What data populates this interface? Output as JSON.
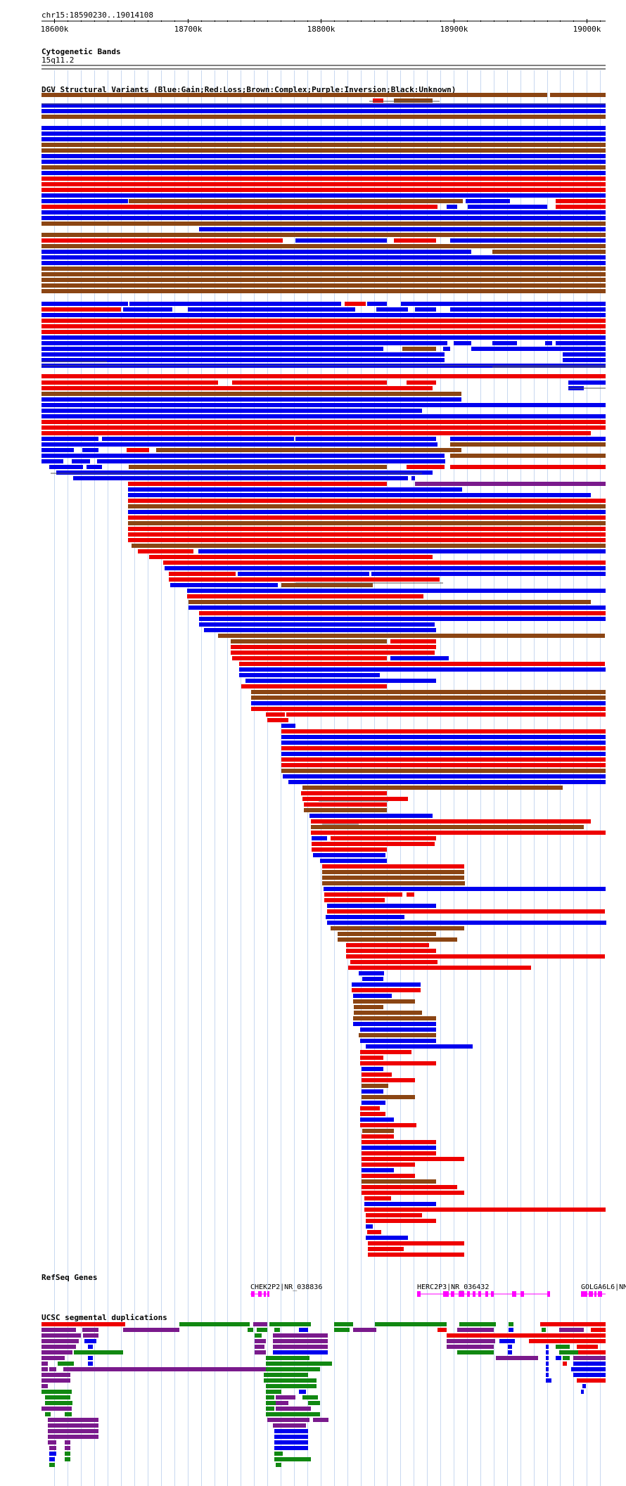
{
  "ruler": {
    "locus": "chr15:18590230..19014108",
    "ticks": [
      {
        "pos": 18600000,
        "label": "18600k"
      },
      {
        "pos": 18700000,
        "label": "18700k"
      },
      {
        "pos": 18800000,
        "label": "18800k"
      },
      {
        "pos": 18900000,
        "label": "18900k"
      },
      {
        "pos": 19000000,
        "label": "19000k"
      }
    ],
    "view_start": 18590230,
    "view_end": 19014108
  },
  "cytoband": {
    "title": "Cytogenetic Bands",
    "band_label": "15q11.2"
  },
  "dgv": {
    "title": "DGV Structural Variants (Blue:Gain;Red:Loss;Brown:Complex;Purple:Inversion;Black:Unknown)",
    "colors": {
      "gain": "#0000ee",
      "loss": "#ee0000",
      "complex": "#8b4513",
      "inversion": "#7a1a8c",
      "unknown": "#000000"
    }
  },
  "refseq": {
    "title": "RefSeq Genes",
    "genes": [
      {
        "name": "CHEK2P2|NR_038836"
      },
      {
        "name": "HERC2P3|NR_036432"
      },
      {
        "name": "GOLGA6L6|NM"
      }
    ],
    "color": "#ff00ff"
  },
  "segdup": {
    "title": "UCSC segmental duplications",
    "colors": {
      "red": "#ee0000",
      "green": "#118811",
      "purple": "#7a1a8c",
      "blue": "#0000ee"
    }
  }
}
